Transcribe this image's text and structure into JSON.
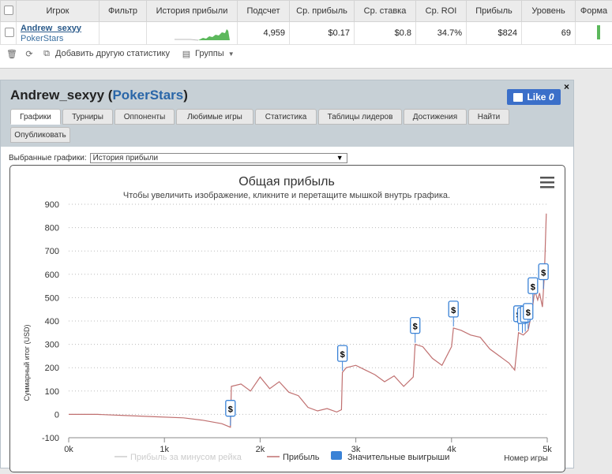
{
  "grid": {
    "headers": [
      "Игрок",
      "Фильтр",
      "История прибыли",
      "Подсчет",
      "Ср. прибыль",
      "Ср. ставка",
      "Ср. ROI",
      "Прибыль",
      "Уровень",
      "Форма"
    ],
    "row": {
      "player": "Andrew_sexyy",
      "site": "PokerStars",
      "filter": "",
      "count": "4,959",
      "avg_profit": "$0.17",
      "avg_stake": "$0.8",
      "avg_roi": "34.7%",
      "profit": "$824",
      "level": "69"
    },
    "toolbar": {
      "add_stats": "Добавить другую статистику",
      "groups": "Группы"
    }
  },
  "panel": {
    "player": "Andrew_sexyy",
    "site": "PokerStars",
    "like_label": "Like",
    "like_count": "0",
    "close": "×",
    "tabs": [
      "Графики",
      "Турниры",
      "Оппоненты",
      "Любимые игры",
      "Статистика",
      "Таблицы лидеров",
      "Достижения",
      "Найти",
      "Опубликовать"
    ],
    "active_tab": "Графики",
    "select_label": "Выбранные графики:",
    "select_value": "История прибыли"
  },
  "chart_data": {
    "type": "line",
    "title": "Общая прибыль",
    "subtitle": "Чтобы увеличить изображение, кликните и перетащите мышкой внутрь графика.",
    "ylabel": "Суммарный итог (USD)",
    "xlabel": "Номер игры",
    "ylim": [
      -100,
      900
    ],
    "xlim": [
      0,
      5000
    ],
    "y_ticks": [
      "-100",
      "0",
      "100",
      "200",
      "300",
      "400",
      "500",
      "600",
      "700",
      "800",
      "900"
    ],
    "x_ticks": [
      "0k",
      "1k",
      "2k",
      "3k",
      "4k",
      "5k"
    ],
    "legend": [
      "Прибыль за минусом рейка",
      "Прибыль",
      "Значительные выигрыши"
    ],
    "series": [
      {
        "name": "Прибыль",
        "color": "#c07070",
        "x": [
          0,
          300,
          600,
          900,
          1200,
          1400,
          1600,
          1690,
          1700,
          1800,
          1900,
          2000,
          2100,
          2200,
          2300,
          2400,
          2500,
          2600,
          2700,
          2800,
          2850,
          2860,
          2900,
          3000,
          3100,
          3200,
          3300,
          3400,
          3500,
          3600,
          3620,
          3700,
          3800,
          3900,
          4000,
          4020,
          4100,
          4200,
          4300,
          4400,
          4500,
          4600,
          4660,
          4700,
          4750,
          4800,
          4830,
          4850,
          4870,
          4900,
          4920,
          4950,
          4970,
          4990
        ],
        "y": [
          0,
          0,
          -5,
          -10,
          -15,
          -25,
          -40,
          -55,
          120,
          130,
          100,
          160,
          110,
          140,
          95,
          80,
          30,
          15,
          25,
          10,
          20,
          180,
          200,
          210,
          190,
          170,
          140,
          165,
          120,
          160,
          300,
          290,
          240,
          210,
          290,
          370,
          360,
          340,
          330,
          280,
          250,
          220,
          190,
          350,
          340,
          360,
          420,
          470,
          530,
          490,
          520,
          460,
          600,
          860
        ]
      }
    ],
    "big_wins_x": [
      1690,
      2860,
      3620,
      4020,
      4700,
      4740,
      4770,
      4800,
      4850,
      4960
    ]
  }
}
